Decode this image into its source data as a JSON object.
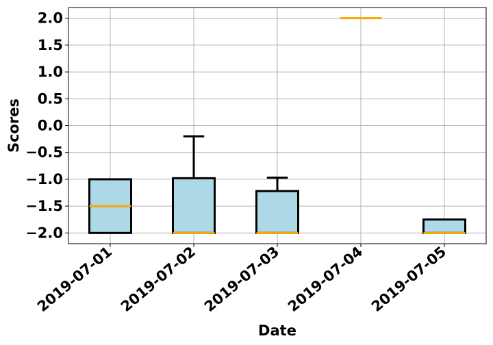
{
  "chart_data": {
    "type": "box",
    "xlabel": "Date",
    "ylabel": "Scores",
    "ylim": [
      -2.2,
      2.2
    ],
    "yticks": [
      2.0,
      1.5,
      1.0,
      0.5,
      0.0,
      -0.5,
      -1.0,
      -1.5,
      -2.0
    ],
    "ytick_labels": [
      "2.0",
      "1.5",
      "1.0",
      "0.5",
      "0.0",
      "−0.5",
      "−1.0",
      "−1.5",
      "−2.0"
    ],
    "categories": [
      "2019-07-01",
      "2019-07-02",
      "2019-07-03",
      "2019-07-04",
      "2019-07-05"
    ],
    "boxes": [
      {
        "category": "2019-07-01",
        "whisker_low": -2.0,
        "q1": -2.0,
        "median": -1.5,
        "q3": -1.0,
        "whisker_high": -1.0
      },
      {
        "category": "2019-07-02",
        "whisker_low": -2.0,
        "q1": -2.0,
        "median": -2.0,
        "q3": -0.98,
        "whisker_high": -0.2
      },
      {
        "category": "2019-07-03",
        "whisker_low": -2.0,
        "q1": -2.0,
        "median": -2.0,
        "q3": -1.22,
        "whisker_high": -0.97
      },
      {
        "category": "2019-07-04",
        "whisker_low": 2.0,
        "q1": 2.0,
        "median": 2.0,
        "q3": 2.0,
        "whisker_high": 2.0
      },
      {
        "category": "2019-07-05",
        "whisker_low": -2.0,
        "q1": -2.0,
        "median": -2.0,
        "q3": -1.75,
        "whisker_high": -1.75
      }
    ],
    "grid": true,
    "colors": {
      "box_fill": "#add8e6",
      "box_edge": "#000000",
      "median": "#ffa500",
      "grid": "#b0b0b0"
    }
  }
}
